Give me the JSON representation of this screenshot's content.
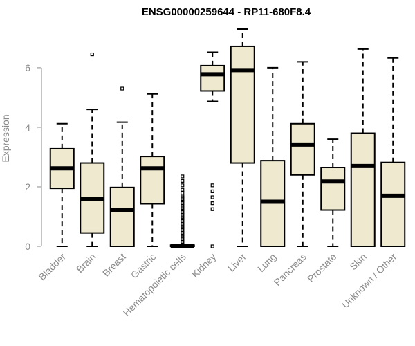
{
  "chart_data": {
    "type": "boxplot",
    "title": "ENSG00000259644 - RP11-680F8.4",
    "ylabel": "Expression",
    "xlabel": "",
    "ylim": [
      0,
      7.3
    ],
    "yticks": [
      0,
      2,
      4,
      6
    ],
    "grid": false,
    "box_color": "#efe9cf",
    "categories": [
      "Bladder",
      "Brain",
      "Breast",
      "Gastric",
      "Hematopoietic cells",
      "Kidney",
      "Liver",
      "Lung",
      "Pancreas",
      "Prostate",
      "Skin",
      "Unknown / Other"
    ],
    "boxes": [
      {
        "whisker_low": 0,
        "q1": 1.95,
        "median": 2.62,
        "q3": 3.28,
        "whisker_high": 4.12,
        "outliers": []
      },
      {
        "whisker_low": 0,
        "q1": 0.45,
        "median": 1.6,
        "q3": 2.8,
        "whisker_high": 4.6,
        "outliers": [
          6.45
        ]
      },
      {
        "whisker_low": 0,
        "q1": 0,
        "median": 1.22,
        "q3": 1.98,
        "whisker_high": 4.17,
        "outliers": [
          5.3
        ]
      },
      {
        "whisker_low": 0,
        "q1": 1.43,
        "median": 2.62,
        "q3": 3.02,
        "whisker_high": 5.12,
        "outliers": []
      },
      {
        "whisker_low": 0,
        "q1": 0,
        "median": 0.02,
        "q3": 0.04,
        "whisker_high": 0.06,
        "outliers": [
          0.1,
          0.15,
          0.2,
          0.25,
          0.3,
          0.35,
          0.4,
          0.45,
          0.5,
          0.55,
          0.6,
          0.65,
          0.7,
          0.75,
          0.8,
          0.85,
          0.9,
          0.95,
          1.0,
          1.05,
          1.1,
          1.15,
          1.2,
          1.25,
          1.3,
          1.35,
          1.4,
          1.45,
          1.5,
          1.55,
          1.6,
          1.65,
          1.7,
          1.8,
          1.9,
          2.05,
          2.2,
          2.35
        ]
      },
      {
        "whisker_low": 4.87,
        "q1": 5.22,
        "median": 5.78,
        "q3": 6.07,
        "whisker_high": 6.52,
        "outliers": [
          0,
          1.25,
          1.45,
          1.65,
          1.85,
          2.05
        ]
      },
      {
        "whisker_low": 0,
        "q1": 2.8,
        "median": 5.92,
        "q3": 6.72,
        "whisker_high": 7.3,
        "outliers": []
      },
      {
        "whisker_low": 0,
        "q1": 0,
        "median": 1.5,
        "q3": 2.88,
        "whisker_high": 6.0,
        "outliers": []
      },
      {
        "whisker_low": 0,
        "q1": 2.4,
        "median": 3.42,
        "q3": 4.12,
        "whisker_high": 6.2,
        "outliers": []
      },
      {
        "whisker_low": 0,
        "q1": 1.22,
        "median": 2.18,
        "q3": 2.65,
        "whisker_high": 3.6,
        "outliers": []
      },
      {
        "whisker_low": 0,
        "q1": 0,
        "median": 2.7,
        "q3": 3.8,
        "whisker_high": 6.63,
        "outliers": []
      },
      {
        "whisker_low": 0,
        "q1": 0,
        "median": 1.7,
        "q3": 2.82,
        "whisker_high": 6.33,
        "outliers": []
      }
    ]
  }
}
